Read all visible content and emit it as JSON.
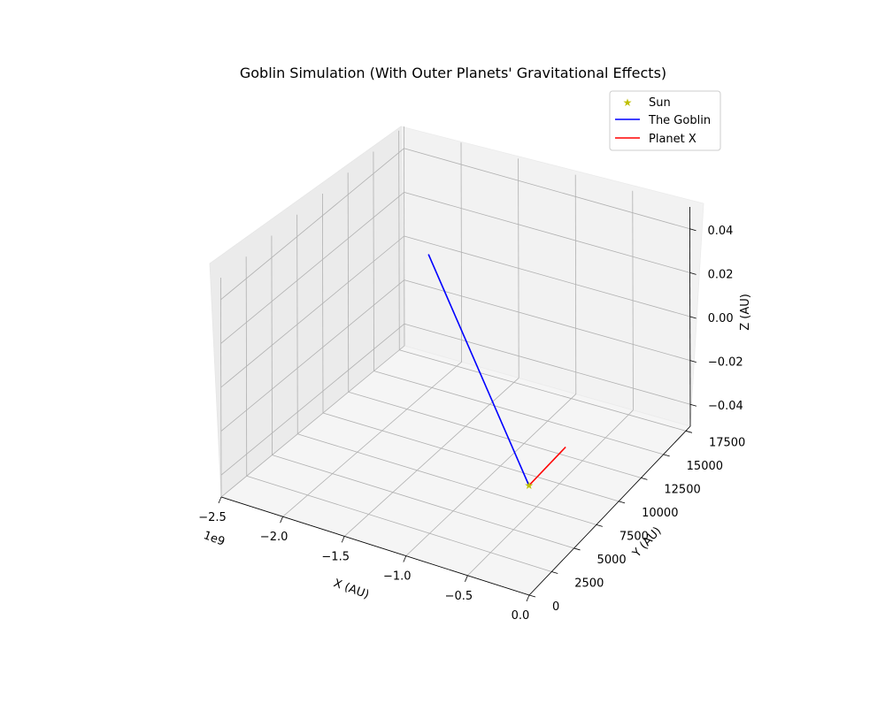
{
  "chart_data": {
    "type": "line3d",
    "title": "Goblin Simulation (With Outer Planets' Gravitational Effects)",
    "xlabel": "X (AU)",
    "ylabel": "Y (AU)",
    "zlabel": "Z (AU)",
    "x_offset_text": "1e9",
    "xlim": [
      -2500000000.0,
      0
    ],
    "ylim": [
      0,
      18000
    ],
    "zlim": [
      -0.05,
      0.05
    ],
    "x_ticks": [
      -2.5,
      -2.0,
      -1.5,
      -1.0,
      -0.5,
      0.0
    ],
    "x_tick_labels": [
      "−2.5",
      "−2.0",
      "−1.5",
      "−1.0",
      "−0.5",
      "0.0"
    ],
    "y_ticks": [
      0,
      2500,
      5000,
      7500,
      10000,
      12500,
      15000,
      17500
    ],
    "y_tick_labels": [
      "0",
      "2500",
      "5000",
      "7500",
      "10000",
      "12500",
      "15000",
      "17500"
    ],
    "z_ticks": [
      -0.04,
      -0.02,
      0.0,
      0.02,
      0.04
    ],
    "z_tick_labels": [
      "−0.04",
      "−0.02",
      "0.00",
      "0.02",
      "0.04"
    ],
    "grid": true,
    "legend_position": "upper right",
    "series": [
      {
        "name": "Sun",
        "kind": "marker",
        "marker": "star",
        "color": "#bfbf00",
        "x": [
          0
        ],
        "y": [
          0
        ],
        "z": [
          0
        ]
      },
      {
        "name": "The Goblin",
        "kind": "line",
        "color": "#0000ff",
        "x": [
          0,
          -2200000000.0
        ],
        "y": [
          0,
          17000
        ],
        "z": [
          0,
          0
        ]
      },
      {
        "name": "Planet X",
        "kind": "line",
        "color": "#ff0000",
        "x": [
          0,
          0
        ],
        "y": [
          0,
          4100
        ],
        "z": [
          0,
          0
        ]
      }
    ]
  }
}
